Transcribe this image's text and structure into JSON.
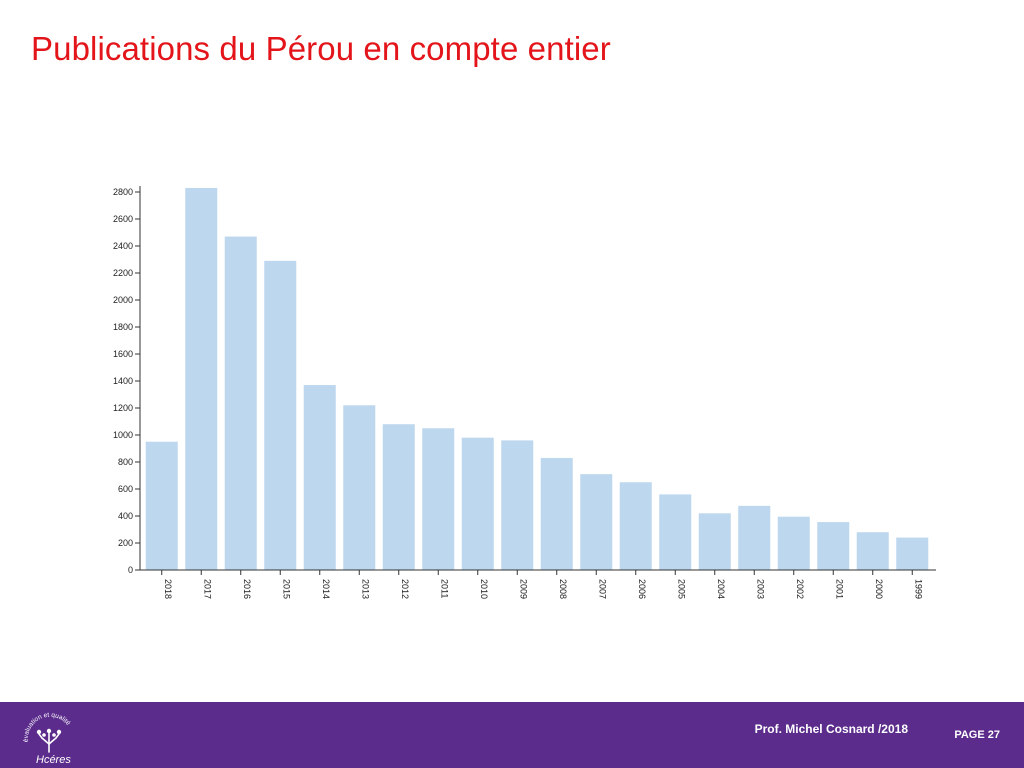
{
  "slide": {
    "title": "Publications du Pérou en compte entier"
  },
  "footer": {
    "author": "Prof. Michel Cosnard /2018",
    "page": "PAGE 27",
    "logo_arc_text": "évaluation et qualité",
    "logo_name": "Hcéres",
    "background_color": "#5b2c8c"
  },
  "colors": {
    "title": "#e3151a",
    "bar": "#bdd7ee"
  },
  "chart_data": {
    "type": "bar",
    "title": "",
    "xlabel": "",
    "ylabel": "",
    "categories": [
      "2018",
      "2017",
      "2016",
      "2015",
      "2014",
      "2013",
      "2012",
      "2011",
      "2010",
      "2009",
      "2008",
      "2007",
      "2006",
      "2005",
      "2004",
      "2003",
      "2002",
      "2001",
      "2000",
      "1999"
    ],
    "values": [
      950,
      2830,
      2470,
      2290,
      1370,
      1220,
      1080,
      1050,
      980,
      960,
      830,
      710,
      650,
      560,
      420,
      475,
      395,
      355,
      280,
      240
    ],
    "yticks": [
      0,
      200,
      400,
      600,
      800,
      1000,
      1200,
      1400,
      1600,
      1800,
      2000,
      2200,
      2400,
      2600,
      2800
    ],
    "ylim": [
      0,
      2800
    ],
    "grid": false,
    "legend": "none"
  }
}
